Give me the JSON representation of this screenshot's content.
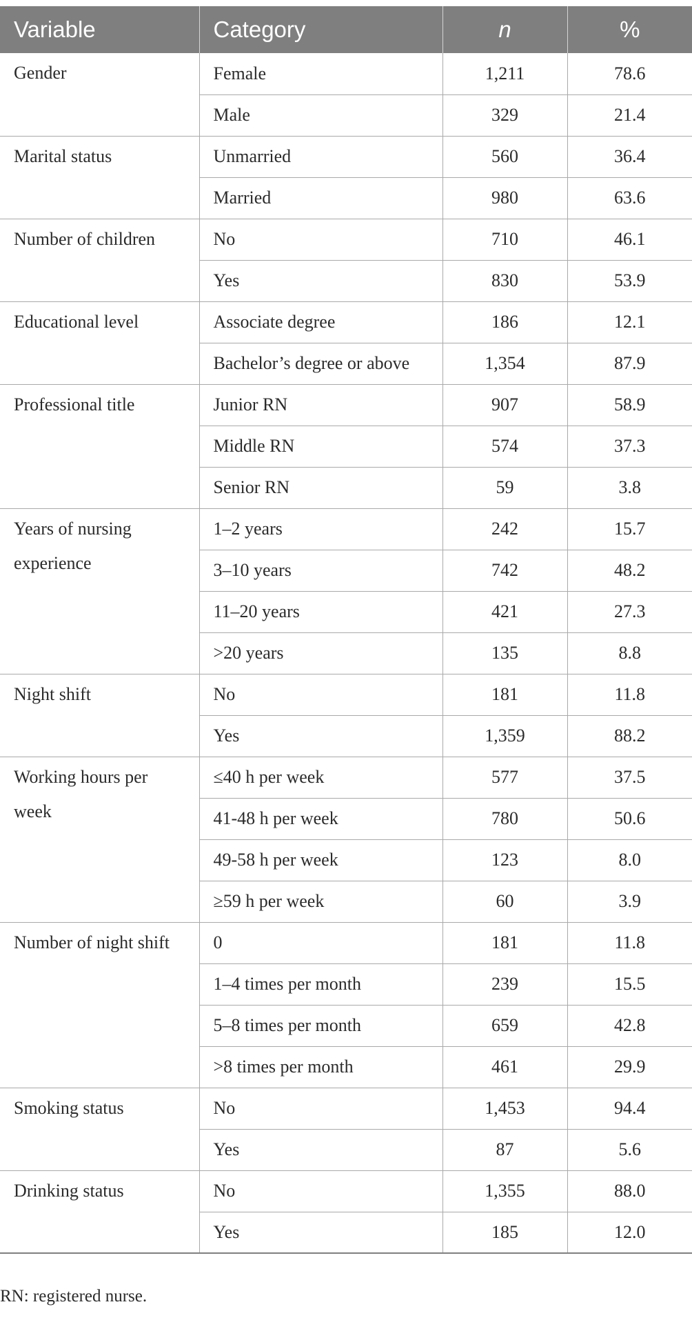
{
  "header": {
    "variable": "Variable",
    "category": "Category",
    "n": "n",
    "pct": "%"
  },
  "groups": [
    {
      "variable": "Gender",
      "rows": [
        {
          "category": "Female",
          "n": "1,211",
          "pct": "78.6"
        },
        {
          "category": "Male",
          "n": "329",
          "pct": "21.4"
        }
      ]
    },
    {
      "variable": "Marital status",
      "rows": [
        {
          "category": "Unmarried",
          "n": "560",
          "pct": "36.4"
        },
        {
          "category": "Married",
          "n": "980",
          "pct": "63.6"
        }
      ]
    },
    {
      "variable": "Number of children",
      "rows": [
        {
          "category": "No",
          "n": "710",
          "pct": "46.1"
        },
        {
          "category": "Yes",
          "n": "830",
          "pct": "53.9"
        }
      ]
    },
    {
      "variable": "Educational level",
      "rows": [
        {
          "category": "Associate degree",
          "n": "186",
          "pct": "12.1"
        },
        {
          "category": "Bachelor’s degree or above",
          "n": "1,354",
          "pct": "87.9"
        }
      ]
    },
    {
      "variable": "Professional title",
      "rows": [
        {
          "category": "Junior RN",
          "n": "907",
          "pct": "58.9"
        },
        {
          "category": "Middle RN",
          "n": "574",
          "pct": "37.3"
        },
        {
          "category": "Senior RN",
          "n": "59",
          "pct": "3.8"
        }
      ]
    },
    {
      "variable": "Years of nursing experience",
      "rows": [
        {
          "category": "1–2 years",
          "n": "242",
          "pct": "15.7"
        },
        {
          "category": "3–10 years",
          "n": "742",
          "pct": "48.2"
        },
        {
          "category": "11–20 years",
          "n": "421",
          "pct": "27.3"
        },
        {
          "category": ">20 years",
          "n": "135",
          "pct": "8.8"
        }
      ]
    },
    {
      "variable": "Night shift",
      "rows": [
        {
          "category": "No",
          "n": "181",
          "pct": "11.8"
        },
        {
          "category": "Yes",
          "n": "1,359",
          "pct": "88.2"
        }
      ]
    },
    {
      "variable": "Working hours per week",
      "rows": [
        {
          "category": "≤40 h per week",
          "n": "577",
          "pct": "37.5"
        },
        {
          "category": "41-48 h per week",
          "n": "780",
          "pct": "50.6"
        },
        {
          "category": "49-58 h per week",
          "n": "123",
          "pct": "8.0"
        },
        {
          "category": "≥59 h per week",
          "n": "60",
          "pct": "3.9"
        }
      ]
    },
    {
      "variable": "Number of night shift",
      "rows": [
        {
          "category": "0",
          "n": "181",
          "pct": "11.8"
        },
        {
          "category": "1–4 times per month",
          "n": "239",
          "pct": "15.5"
        },
        {
          "category": "5–8 times per month",
          "n": "659",
          "pct": "42.8"
        },
        {
          "category": ">8 times per month",
          "n": "461",
          "pct": "29.9"
        }
      ]
    },
    {
      "variable": "Smoking status",
      "rows": [
        {
          "category": "No",
          "n": "1,453",
          "pct": "94.4"
        },
        {
          "category": "Yes",
          "n": "87",
          "pct": "5.6"
        }
      ]
    },
    {
      "variable": "Drinking status",
      "rows": [
        {
          "category": "No",
          "n": "1,355",
          "pct": "88.0"
        },
        {
          "category": "Yes",
          "n": "185",
          "pct": "12.0"
        }
      ]
    }
  ],
  "footnote": "RN: registered nurse."
}
